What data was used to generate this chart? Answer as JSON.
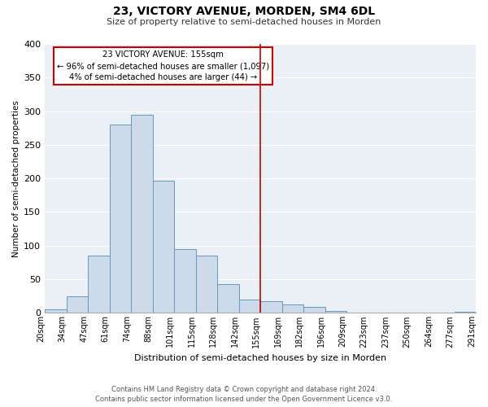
{
  "title": "23, VICTORY AVENUE, MORDEN, SM4 6DL",
  "subtitle": "Size of property relative to semi-detached houses in Morden",
  "xlabel": "Distribution of semi-detached houses by size in Morden",
  "ylabel": "Number of semi-detached properties",
  "bar_color": "#ccdaea",
  "bar_edge_color": "#6699bb",
  "background_color": "#eaf0f6",
  "grid_color": "#ffffff",
  "categories": [
    "20sqm",
    "34sqm",
    "47sqm",
    "61sqm",
    "74sqm",
    "88sqm",
    "101sqm",
    "115sqm",
    "128sqm",
    "142sqm",
    "155sqm",
    "169sqm",
    "182sqm",
    "196sqm",
    "209sqm",
    "223sqm",
    "237sqm",
    "250sqm",
    "264sqm",
    "277sqm",
    "291sqm"
  ],
  "values": [
    5,
    25,
    85,
    280,
    295,
    197,
    95,
    85,
    43,
    20,
    17,
    13,
    9,
    3,
    1,
    0,
    0,
    0,
    0,
    2
  ],
  "ylim": [
    0,
    400
  ],
  "yticks": [
    0,
    50,
    100,
    150,
    200,
    250,
    300,
    350,
    400
  ],
  "annotation_title": "23 VICTORY AVENUE: 155sqm",
  "annotation_line1": "← 96% of semi-detached houses are smaller (1,097)",
  "annotation_line2": "4% of semi-detached houses are larger (44) →",
  "annotation_box_color": "white",
  "annotation_border_color": "#cc0000",
  "property_line_color": "#cc0000",
  "property_line_index": 10,
  "footer_line1": "Contains HM Land Registry data © Crown copyright and database right 2024.",
  "footer_line2": "Contains public sector information licensed under the Open Government Licence v3.0."
}
